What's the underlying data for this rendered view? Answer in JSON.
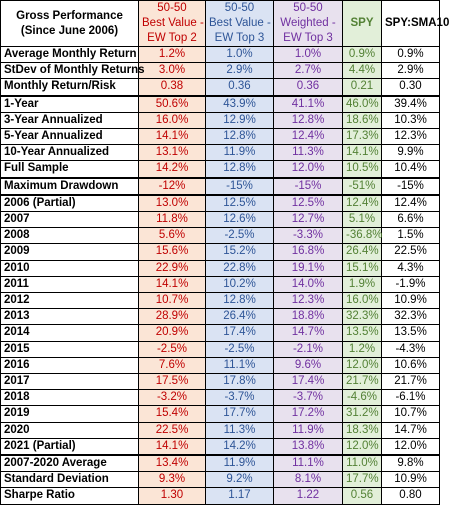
{
  "headers": [
    "Gross Performance\n(Since June 2006)",
    "50-50\nBest Value -\nEW Top 2",
    "50-50\nBest Value -\nEW Top 3",
    "50-50\nWeighted -\nEW Top 3",
    "SPY",
    "SPY:SMA10"
  ],
  "rows": [
    {
      "label": "Average Monthly Return",
      "values": [
        "1.2%",
        "1.0%",
        "1.0%",
        "0.9%",
        "0.9%"
      ]
    },
    {
      "label": "StDev of Monthly Returns",
      "values": [
        "3.0%",
        "2.9%",
        "2.7%",
        "4.4%",
        "2.9%"
      ]
    },
    {
      "label": "Monthly Return/Risk",
      "values": [
        "0.38",
        "0.36",
        "0.36",
        "0.21",
        "0.30"
      ]
    },
    {
      "label": "1-Year",
      "values": [
        "50.6%",
        "43.9%",
        "41.1%",
        "46.0%",
        "39.4%"
      ]
    },
    {
      "label": "3-Year Annualized",
      "values": [
        "16.0%",
        "12.9%",
        "12.8%",
        "18.6%",
        "10.3%"
      ]
    },
    {
      "label": "5-Year Annualized",
      "values": [
        "14.1%",
        "12.8%",
        "12.4%",
        "17.3%",
        "12.3%"
      ]
    },
    {
      "label": "10-Year Annualized",
      "values": [
        "13.1%",
        "11.9%",
        "11.3%",
        "14.1%",
        "9.9%"
      ]
    },
    {
      "label": "Full Sample",
      "values": [
        "14.2%",
        "12.8%",
        "12.0%",
        "10.5%",
        "10.4%"
      ]
    },
    {
      "label": "Maximum Drawdown",
      "values": [
        "-12%",
        "-15%",
        "-15%",
        "-51%",
        "-15%"
      ]
    },
    {
      "label": "2006 (Partial)",
      "values": [
        "13.0%",
        "12.5%",
        "12.5%",
        "12.4%",
        "12.4%"
      ]
    },
    {
      "label": "2007",
      "values": [
        "11.8%",
        "12.6%",
        "12.7%",
        "5.1%",
        "6.6%"
      ]
    },
    {
      "label": "2008",
      "values": [
        "5.6%",
        "-2.5%",
        "-3.3%",
        "-36.8%",
        "1.5%"
      ]
    },
    {
      "label": "2009",
      "values": [
        "15.6%",
        "15.2%",
        "16.8%",
        "26.4%",
        "22.5%"
      ]
    },
    {
      "label": "2010",
      "values": [
        "22.9%",
        "22.8%",
        "19.1%",
        "15.1%",
        "4.3%"
      ]
    },
    {
      "label": "2011",
      "values": [
        "14.1%",
        "10.2%",
        "14.0%",
        "1.9%",
        "-1.9%"
      ]
    },
    {
      "label": "2012",
      "values": [
        "10.7%",
        "12.8%",
        "12.3%",
        "16.0%",
        "10.9%"
      ]
    },
    {
      "label": "2013",
      "values": [
        "28.9%",
        "26.4%",
        "18.8%",
        "32.3%",
        "32.3%"
      ]
    },
    {
      "label": "2014",
      "values": [
        "20.9%",
        "17.4%",
        "14.7%",
        "13.5%",
        "13.5%"
      ]
    },
    {
      "label": "2015",
      "values": [
        "-2.5%",
        "-2.5%",
        "-2.1%",
        "1.2%",
        "-4.3%"
      ]
    },
    {
      "label": "2016",
      "values": [
        "7.6%",
        "11.1%",
        "9.6%",
        "12.0%",
        "10.6%"
      ]
    },
    {
      "label": "2017",
      "values": [
        "17.5%",
        "17.8%",
        "17.4%",
        "21.7%",
        "21.7%"
      ]
    },
    {
      "label": "2018",
      "values": [
        "-3.2%",
        "-3.7%",
        "-3.7%",
        "-4.6%",
        "-6.1%"
      ]
    },
    {
      "label": "2019",
      "values": [
        "15.4%",
        "17.7%",
        "17.2%",
        "31.2%",
        "10.7%"
      ]
    },
    {
      "label": "2020",
      "values": [
        "22.5%",
        "11.3%",
        "11.9%",
        "18.3%",
        "14.7%"
      ]
    },
    {
      "label": "2021 (Partial)",
      "values": [
        "14.1%",
        "14.2%",
        "13.8%",
        "12.0%",
        "12.0%"
      ]
    },
    {
      "label": "2007-2020 Average",
      "values": [
        "13.4%",
        "11.9%",
        "11.1%",
        "11.0%",
        "9.8%"
      ]
    },
    {
      "label": "Standard Deviation",
      "values": [
        "9.3%",
        "9.2%",
        "8.1%",
        "17.7%",
        "10.9%"
      ]
    },
    {
      "label": "Sharpe Ratio",
      "values": [
        "1.30",
        "1.17",
        "1.22",
        "0.56",
        "0.80"
      ]
    }
  ],
  "section_breaks": [
    3,
    8,
    9,
    25
  ],
  "colors": {
    "best_value_top2": "#c00000",
    "best_value_top3": "#2e5597",
    "weighted_top3": "#7030a0",
    "spy": "#538135",
    "spy_sma10": "#000000"
  }
}
